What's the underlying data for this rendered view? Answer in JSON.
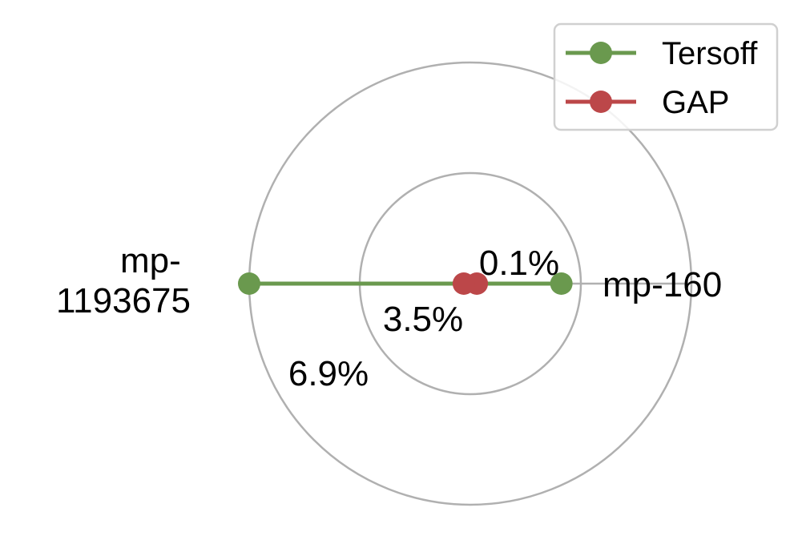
{
  "chart_data": {
    "type": "radar",
    "categories": [
      "mp-160",
      "mp-1193675"
    ],
    "radial_ticks": [
      "0.1%",
      "3.5%",
      "6.9%"
    ],
    "radial_values": [
      0.1,
      3.5,
      6.9
    ],
    "rlim": [
      0.1,
      6.9
    ],
    "grid": true,
    "legend_position": "top-right",
    "series": [
      {
        "name": "Tersoff",
        "values": [
          2.9,
          6.9
        ],
        "color": "#6a994e"
      },
      {
        "name": "GAP",
        "values": [
          0.3,
          0.3
        ],
        "color": "#bc4749"
      }
    ]
  }
}
